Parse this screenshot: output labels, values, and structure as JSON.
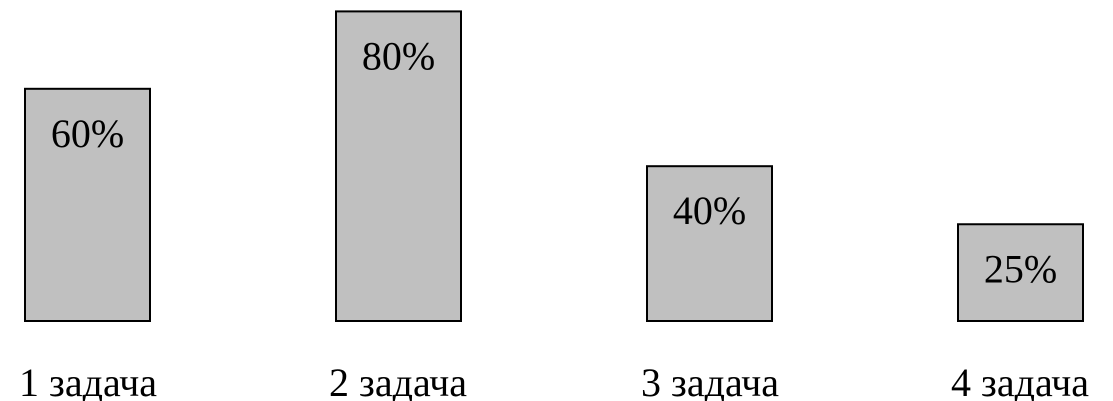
{
  "chart_data": {
    "type": "bar",
    "categories": [
      "1 задача",
      "2 задача",
      "3 задача",
      "4 задача"
    ],
    "values": [
      60,
      80,
      40,
      25
    ],
    "value_labels": [
      "60%",
      "80%",
      "40%",
      "25%"
    ],
    "title": "",
    "xlabel": "",
    "ylabel": "",
    "ylim": [
      0,
      100
    ],
    "grid": false,
    "legend": "none",
    "bar_color": "#c0c0c0",
    "bar_edge_color": "#000000"
  }
}
